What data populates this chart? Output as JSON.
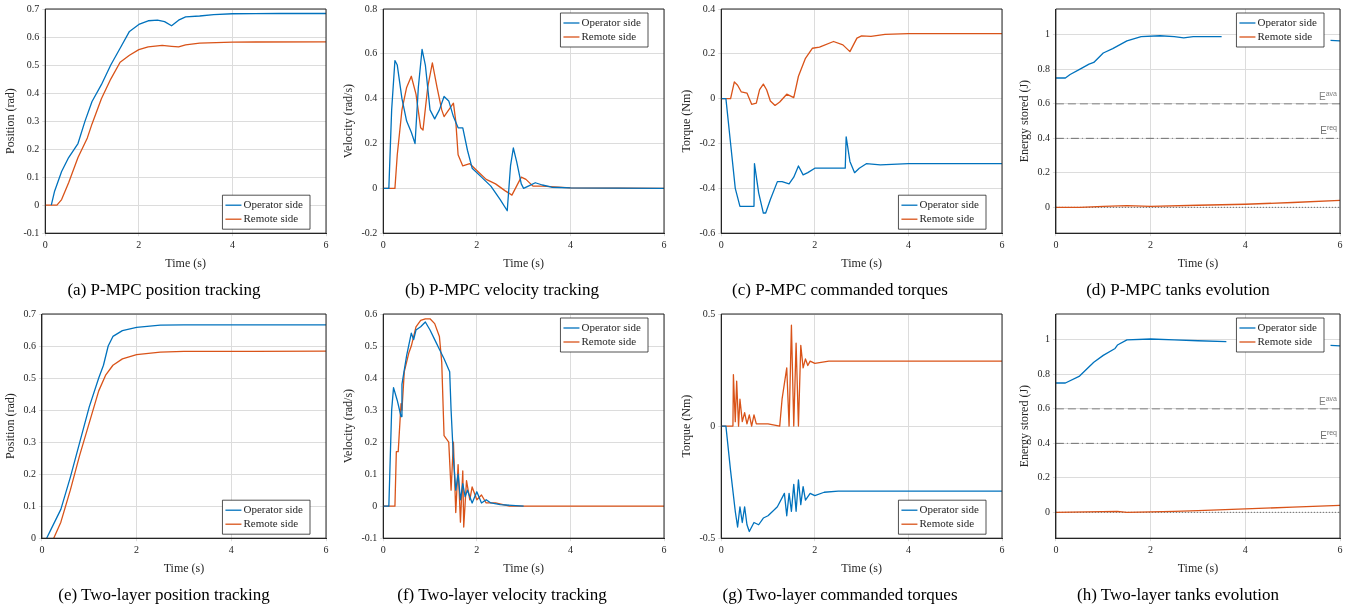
{
  "chart_data": [
    {
      "type": "line",
      "title": "(a) P-MPC position tracking",
      "xlabel": "Time (s)",
      "ylabel": "Position (rad)",
      "xlim": [
        0,
        6
      ],
      "xticks": [
        0,
        2,
        4,
        6
      ],
      "ylim": [
        -0.1,
        0.7
      ],
      "yticks": [
        -0.1,
        0,
        0.1,
        0.2,
        0.3,
        0.4,
        0.5,
        0.6,
        0.7
      ],
      "grid": true,
      "legend": "bottom right",
      "series": [
        {
          "name": "Operator side",
          "color": "#0072bd",
          "x": [
            0.13,
            0.2,
            0.35,
            0.5,
            0.7,
            0.85,
            1.0,
            1.2,
            1.4,
            1.6,
            1.8,
            2.0,
            2.2,
            2.4,
            2.55,
            2.7,
            2.85,
            3.0,
            3.3,
            3.6,
            4,
            5,
            6
          ],
          "values": [
            0,
            0.05,
            0.12,
            0.17,
            0.22,
            0.3,
            0.37,
            0.43,
            0.5,
            0.56,
            0.62,
            0.645,
            0.658,
            0.66,
            0.655,
            0.64,
            0.66,
            0.672,
            0.675,
            0.68,
            0.683,
            0.684,
            0.684
          ]
        },
        {
          "name": "Remote side",
          "color": "#d95319",
          "x": [
            0,
            0.25,
            0.35,
            0.5,
            0.7,
            0.9,
            1.0,
            1.2,
            1.4,
            1.6,
            1.8,
            2.0,
            2.2,
            2.5,
            2.7,
            2.85,
            3.0,
            3.3,
            4,
            6
          ],
          "values": [
            0,
            0,
            0.02,
            0.08,
            0.17,
            0.24,
            0.29,
            0.38,
            0.45,
            0.51,
            0.535,
            0.555,
            0.565,
            0.57,
            0.567,
            0.565,
            0.572,
            0.578,
            0.582,
            0.583
          ]
        }
      ]
    },
    {
      "type": "line",
      "title": "(b) P-MPC velocity tracking",
      "xlabel": "Time (s)",
      "ylabel": "Velocity (rad/s)",
      "xlim": [
        0,
        6
      ],
      "xticks": [
        0,
        2,
        4,
        6
      ],
      "ylim": [
        -0.2,
        0.8
      ],
      "yticks": [
        -0.2,
        0,
        0.2,
        0.4,
        0.6,
        0.8
      ],
      "grid": true,
      "legend": "top right",
      "series": [
        {
          "name": "Operator side",
          "color": "#0072bd",
          "x": [
            0,
            0.12,
            0.18,
            0.25,
            0.3,
            0.4,
            0.5,
            0.6,
            0.68,
            0.75,
            0.83,
            0.9,
            1.0,
            1.1,
            1.2,
            1.3,
            1.4,
            1.5,
            1.6,
            1.7,
            1.8,
            1.9,
            2.1,
            2.3,
            2.5,
            2.65,
            2.72,
            2.78,
            2.85,
            2.95,
            3.0,
            3.1,
            3.25,
            3.4,
            3.6,
            4,
            6
          ],
          "values": [
            0,
            0,
            0.35,
            0.57,
            0.55,
            0.4,
            0.3,
            0.25,
            0.2,
            0.45,
            0.62,
            0.55,
            0.35,
            0.31,
            0.35,
            0.41,
            0.39,
            0.32,
            0.27,
            0.27,
            0.17,
            0.09,
            0.05,
            0.01,
            -0.05,
            -0.1,
            0.1,
            0.18,
            0.12,
            0.02,
            0,
            0.01,
            0.025,
            0.015,
            0.005,
            0.002,
            0
          ]
        },
        {
          "name": "Remote side",
          "color": "#d95319",
          "x": [
            0,
            0.25,
            0.3,
            0.4,
            0.5,
            0.6,
            0.7,
            0.8,
            0.85,
            0.95,
            1.05,
            1.15,
            1.25,
            1.3,
            1.4,
            1.5,
            1.55,
            1.6,
            1.7,
            1.85,
            2.0,
            2.2,
            2.4,
            2.6,
            2.75,
            2.85,
            2.95,
            3.05,
            3.2,
            3.4,
            4,
            6
          ],
          "values": [
            0,
            0,
            0.15,
            0.35,
            0.45,
            0.5,
            0.42,
            0.27,
            0.26,
            0.45,
            0.56,
            0.45,
            0.35,
            0.32,
            0.35,
            0.38,
            0.3,
            0.15,
            0.1,
            0.11,
            0.08,
            0.04,
            0.02,
            -0.01,
            -0.03,
            0.01,
            0.05,
            0.04,
            0.01,
            0.01,
            0.002,
            0
          ]
        }
      ]
    },
    {
      "type": "line",
      "title": "(c) P-MPC commanded torques",
      "xlabel": "Time (s)",
      "ylabel": "Torque (Nm)",
      "xlim": [
        0,
        6
      ],
      "xticks": [
        0,
        2,
        4,
        6
      ],
      "ylim": [
        -0.6,
        0.4
      ],
      "yticks": [
        -0.6,
        -0.4,
        -0.2,
        0,
        0.2,
        0.4
      ],
      "grid": true,
      "legend": "bottom right",
      "series": [
        {
          "name": "Operator side",
          "color": "#0072bd",
          "x": [
            0,
            0.1,
            0.2,
            0.3,
            0.4,
            0.7,
            0.71,
            0.8,
            0.9,
            0.95,
            1.05,
            1.2,
            1.3,
            1.45,
            1.55,
            1.65,
            1.75,
            1.85,
            2.0,
            2.65,
            2.67,
            2.75,
            2.85,
            2.95,
            3.1,
            3.4,
            4,
            6
          ],
          "values": [
            0,
            0,
            -0.2,
            -0.4,
            -0.48,
            -0.48,
            -0.29,
            -0.42,
            -0.51,
            -0.51,
            -0.45,
            -0.37,
            -0.37,
            -0.38,
            -0.35,
            -0.3,
            -0.34,
            -0.33,
            -0.31,
            -0.31,
            -0.17,
            -0.28,
            -0.33,
            -0.31,
            -0.29,
            -0.295,
            -0.29,
            -0.29
          ]
        },
        {
          "name": "Remote side",
          "color": "#d95319",
          "x": [
            0,
            0.2,
            0.28,
            0.35,
            0.43,
            0.55,
            0.65,
            0.75,
            0.82,
            0.9,
            0.97,
            1.05,
            1.15,
            1.25,
            1.4,
            1.55,
            1.65,
            1.8,
            1.95,
            2.1,
            2.4,
            2.6,
            2.75,
            2.9,
            3.0,
            3.2,
            3.5,
            4,
            6
          ],
          "values": [
            0,
            0,
            0.075,
            0.06,
            0.03,
            0.025,
            -0.025,
            -0.02,
            0.04,
            0.065,
            0.04,
            -0.01,
            -0.03,
            -0.015,
            0.02,
            0.005,
            0.1,
            0.18,
            0.225,
            0.23,
            0.255,
            0.24,
            0.21,
            0.27,
            0.28,
            0.278,
            0.287,
            0.29,
            0.29
          ]
        }
      ]
    },
    {
      "type": "line",
      "title": "(d) P-MPC tanks evolution",
      "xlabel": "Time (s)",
      "ylabel": "Energy stored (J)",
      "xlim": [
        0,
        6
      ],
      "xticks": [
        0,
        2,
        4,
        6
      ],
      "ylim": [
        -0.15,
        1.15
      ],
      "yticks": [
        0,
        0.2,
        0.4,
        0.6,
        0.8,
        1
      ],
      "grid": true,
      "legend": "top right",
      "series": [
        {
          "name": "Operator side",
          "color": "#0072bd",
          "x": [
            0,
            0.2,
            0.3,
            0.5,
            0.7,
            0.8,
            1.0,
            1.2,
            1.5,
            1.8,
            2.2,
            2.5,
            2.7,
            2.9,
            3.5,
            3.65,
            5.8,
            6
          ],
          "values": [
            0.75,
            0.75,
            0.77,
            0.8,
            0.83,
            0.84,
            0.895,
            0.92,
            0.965,
            0.99,
            0.995,
            0.99,
            0.983,
            0.99,
            0.99,
            null,
            0.968,
            0.965
          ]
        },
        {
          "name": "Remote side",
          "color": "#d95319",
          "x": [
            0,
            0.5,
            1.0,
            1.5,
            2,
            3,
            4,
            5,
            6
          ],
          "values": [
            0,
            0,
            0.005,
            0.01,
            0.005,
            0.012,
            0.018,
            0.028,
            0.04
          ]
        }
      ],
      "ref_lines": [
        {
          "axis": "y",
          "value": 0.6,
          "label": "E$^{ava}$",
          "color": "#808080",
          "line_style": "dashed"
        },
        {
          "axis": "y",
          "value": 0.4,
          "label": "E$^{req}$",
          "color": "#707070",
          "line_style": "dashdot"
        },
        {
          "axis": "y",
          "value": 0,
          "label": null,
          "color": "#606060",
          "line_style": "dotted"
        }
      ]
    },
    {
      "type": "line",
      "title": "(e) Two-layer position tracking",
      "xlabel": "Time (s)",
      "ylabel": "Position (rad)",
      "xlim": [
        0,
        6
      ],
      "xticks": [
        0,
        2,
        4,
        6
      ],
      "ylim": [
        0,
        0.7
      ],
      "yticks": [
        0,
        0.1,
        0.2,
        0.3,
        0.4,
        0.5,
        0.6,
        0.7
      ],
      "grid": true,
      "legend": "bottom right",
      "series": [
        {
          "name": "Operator side",
          "color": "#0072bd",
          "x": [
            0.1,
            0.2,
            0.4,
            0.6,
            0.8,
            1.0,
            1.2,
            1.3,
            1.4,
            1.5,
            1.7,
            2.0,
            2.5,
            3,
            6
          ],
          "values": [
            0,
            0.03,
            0.09,
            0.19,
            0.3,
            0.41,
            0.5,
            0.54,
            0.6,
            0.63,
            0.648,
            0.658,
            0.665,
            0.666,
            0.666
          ]
        },
        {
          "name": "Remote side",
          "color": "#d95319",
          "x": [
            0.25,
            0.4,
            0.6,
            0.8,
            1.0,
            1.2,
            1.35,
            1.5,
            1.7,
            2.0,
            2.5,
            3,
            6
          ],
          "values": [
            0,
            0.05,
            0.15,
            0.26,
            0.36,
            0.46,
            0.51,
            0.54,
            0.56,
            0.573,
            0.581,
            0.583,
            0.584
          ]
        }
      ]
    },
    {
      "type": "line",
      "title": "(f) Two-layer velocity tracking",
      "xlabel": "Time (s)",
      "ylabel": "Velocity (rad/s)",
      "xlim": [
        0,
        6
      ],
      "xticks": [
        0,
        2,
        4,
        6
      ],
      "ylim": [
        -0.1,
        0.6
      ],
      "yticks": [
        -0.1,
        0,
        0.1,
        0.2,
        0.3,
        0.4,
        0.5,
        0.6
      ],
      "grid": true,
      "legend": "top right",
      "series": [
        {
          "name": "Operator side",
          "color": "#0072bd",
          "x": [
            0,
            0.12,
            0.18,
            0.22,
            0.3,
            0.38,
            0.4,
            0.5,
            0.6,
            0.65,
            0.7,
            0.8,
            0.9,
            1.0,
            1.1,
            1.2,
            1.3,
            1.42,
            1.45,
            1.5,
            1.55,
            1.6,
            1.65,
            1.7,
            1.75,
            1.8,
            1.9,
            2.0,
            2.1,
            2.2,
            2.3,
            2.5,
            3
          ],
          "values": [
            0,
            0,
            0.3,
            0.37,
            0.33,
            0.28,
            0.38,
            0.47,
            0.54,
            0.52,
            0.55,
            0.56,
            0.575,
            0.55,
            0.52,
            0.49,
            0.46,
            0.42,
            0.3,
            0.15,
            0.05,
            0.1,
            0.02,
            0.07,
            0.03,
            0.05,
            0.01,
            0.045,
            0.01,
            0.02,
            0.01,
            0.005,
            0
          ]
        },
        {
          "name": "Remote side",
          "color": "#d95319",
          "x": [
            0,
            0.25,
            0.28,
            0.32,
            0.38,
            0.4,
            0.45,
            0.55,
            0.6,
            0.7,
            0.8,
            0.9,
            1.0,
            1.1,
            1.2,
            1.25,
            1.3,
            1.4,
            1.45,
            1.5,
            1.55,
            1.6,
            1.65,
            1.7,
            1.72,
            1.78,
            1.85,
            1.9,
            2.0,
            2.1,
            2.2,
            2.4,
            2.7,
            6
          ],
          "values": [
            0,
            0,
            0.17,
            0.17,
            0.32,
            0.3,
            0.42,
            0.48,
            0.5,
            0.56,
            0.58,
            0.585,
            0.585,
            0.57,
            0.53,
            0.45,
            0.22,
            0.2,
            0.05,
            0.2,
            -0.02,
            0.13,
            -0.05,
            0.11,
            -0.065,
            0.08,
            0.02,
            0.06,
            0.02,
            0.035,
            0.01,
            0.01,
            0,
            0
          ]
        }
      ]
    },
    {
      "type": "line",
      "title": "(g) Two-layer commanded torques",
      "xlabel": "Time (s)",
      "ylabel": "Torque (Nm)",
      "xlim": [
        0,
        6
      ],
      "xticks": [
        0,
        2,
        4,
        6
      ],
      "ylim": [
        -0.5,
        0.5
      ],
      "yticks": [
        -0.5,
        0,
        0.5
      ],
      "grid": true,
      "legend": "bottom right",
      "series": [
        {
          "name": "Operator side",
          "color": "#0072bd",
          "x": [
            0,
            0.1,
            0.2,
            0.3,
            0.35,
            0.4,
            0.45,
            0.5,
            0.55,
            0.6,
            0.7,
            0.8,
            0.9,
            1.0,
            1.2,
            1.35,
            1.4,
            1.45,
            1.5,
            1.55,
            1.6,
            1.65,
            1.7,
            1.75,
            1.8,
            1.9,
            2.0,
            2.2,
            2.5,
            6
          ],
          "values": [
            0,
            0,
            -0.2,
            -0.38,
            -0.45,
            -0.36,
            -0.43,
            -0.36,
            -0.44,
            -0.47,
            -0.43,
            -0.44,
            -0.41,
            -0.4,
            -0.36,
            -0.3,
            -0.4,
            -0.3,
            -0.38,
            -0.26,
            -0.38,
            -0.24,
            -0.35,
            -0.27,
            -0.33,
            -0.3,
            -0.31,
            -0.295,
            -0.29,
            -0.29
          ]
        },
        {
          "name": "Remote side",
          "color": "#d95319",
          "x": [
            0,
            0.25,
            0.26,
            0.3,
            0.33,
            0.37,
            0.4,
            0.45,
            0.5,
            0.55,
            0.6,
            0.65,
            0.7,
            0.75,
            1.0,
            1.25,
            1.3,
            1.4,
            1.45,
            1.5,
            1.55,
            1.6,
            1.65,
            1.7,
            1.75,
            1.8,
            1.85,
            1.9,
            2.0,
            2.3,
            6
          ],
          "values": [
            0,
            0,
            0.23,
            0.02,
            0.2,
            0,
            0.12,
            0.02,
            0.06,
            0.01,
            0.05,
            0,
            0.05,
            0.01,
            0.01,
            0,
            0.12,
            0.26,
            0,
            0.45,
            0,
            0.37,
            0,
            0.36,
            0.26,
            0.3,
            0.27,
            0.29,
            0.28,
            0.29,
            0.29
          ]
        }
      ]
    },
    {
      "type": "line",
      "title": "(h) Two-layer tanks evolution",
      "xlabel": "Time (s)",
      "ylabel": "Energy stored (J)",
      "xlim": [
        0,
        6
      ],
      "xticks": [
        0,
        2,
        4,
        6
      ],
      "ylim": [
        -0.15,
        1.15
      ],
      "yticks": [
        0,
        0.2,
        0.4,
        0.6,
        0.8,
        1
      ],
      "grid": true,
      "legend": "top right",
      "series": [
        {
          "name": "Operator side",
          "color": "#0072bd",
          "x": [
            0,
            0.2,
            0.5,
            0.8,
            1.0,
            1.25,
            1.3,
            1.5,
            2.0,
            2.5,
            3.0,
            3.6,
            3.65,
            5.8,
            6
          ],
          "values": [
            0.75,
            0.75,
            0.79,
            0.87,
            0.91,
            0.95,
            0.97,
            1.0,
            1.005,
            1.0,
            0.995,
            0.99,
            null,
            0.968,
            0.965
          ]
        },
        {
          "name": "Remote side",
          "color": "#d95319",
          "x": [
            0,
            1.3,
            1.5,
            2.5,
            3,
            4,
            5,
            6
          ],
          "values": [
            0,
            0.005,
            0,
            0.005,
            0.01,
            0.02,
            0.03,
            0.04
          ]
        }
      ],
      "ref_lines": [
        {
          "axis": "y",
          "value": 0.6,
          "label": "E$^{ava}$",
          "color": "#808080",
          "line_style": "dashed"
        },
        {
          "axis": "y",
          "value": 0.4,
          "label": "E$^{req}$",
          "color": "#707070",
          "line_style": "dashdot"
        },
        {
          "axis": "y",
          "value": 0,
          "label": null,
          "color": "#606060",
          "line_style": "dotted"
        }
      ]
    }
  ]
}
